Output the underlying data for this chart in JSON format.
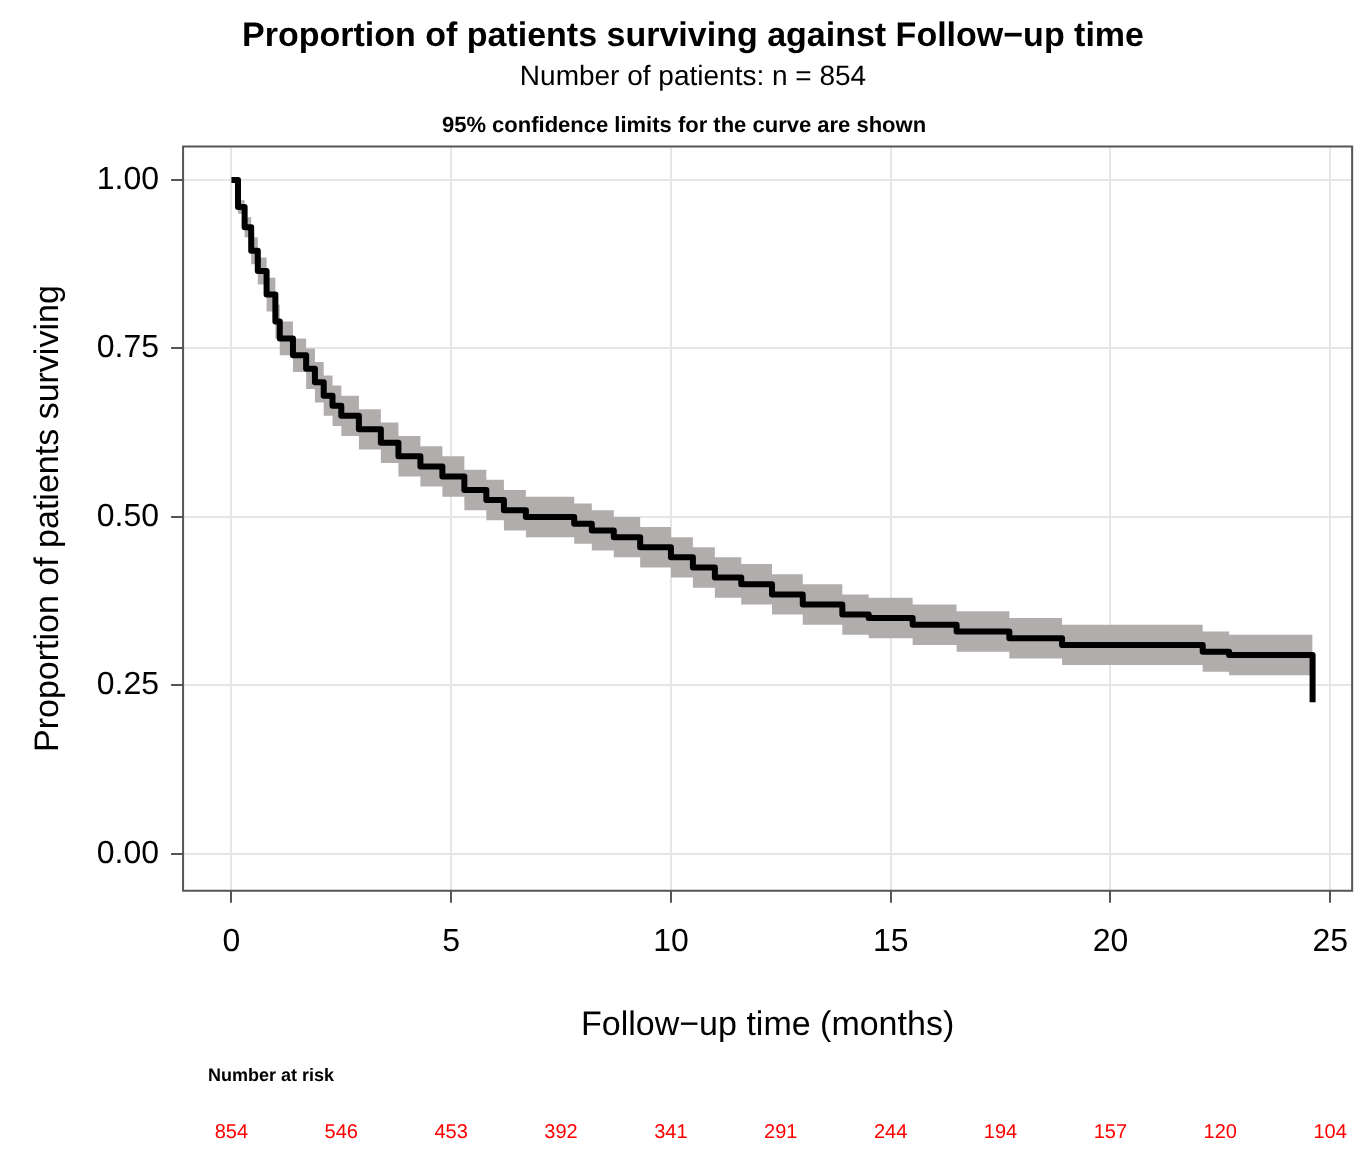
{
  "chart_data": {
    "type": "step",
    "title": "Proportion of patients surviving against Follow−up time",
    "subtitle": "Number of patients: n = 854",
    "xlabel": "Follow−up time (months)",
    "ylabel": "Proportion of patients surviving",
    "x": [
      0,
      0.15,
      0.3,
      0.45,
      0.6,
      0.8,
      1,
      1.1,
      1.4,
      1.7,
      1.9,
      2.1,
      2.3,
      2.5,
      2.9,
      3.4,
      3.8,
      4.3,
      4.8,
      5.3,
      5.8,
      6.2,
      6.7,
      7.8,
      8.2,
      8.7,
      9.3,
      10,
      10.5,
      11,
      11.6,
      12.3,
      13,
      13.9,
      14.5,
      15.5,
      16.5,
      17.7,
      18.9,
      21,
      22.1,
      22.7,
      24.6,
      24.6
    ],
    "series": [
      {
        "color": "#000000",
        "values": [
          1,
          0.96,
          0.93,
          0.895,
          0.865,
          0.83,
          0.79,
          0.765,
          0.74,
          0.72,
          0.7,
          0.68,
          0.665,
          0.65,
          0.63,
          0.61,
          0.59,
          0.575,
          0.56,
          0.54,
          0.525,
          0.51,
          0.5,
          0.49,
          0.48,
          0.47,
          0.455,
          0.44,
          0.425,
          0.41,
          0.4,
          0.385,
          0.37,
          0.355,
          0.35,
          0.34,
          0.33,
          0.32,
          0.31,
          0.31,
          0.3,
          0.295,
          0.295,
          0.225
        ],
        "lower": [
          1,
          0.95,
          0.915,
          0.875,
          0.845,
          0.805,
          0.765,
          0.74,
          0.715,
          0.69,
          0.67,
          0.65,
          0.635,
          0.62,
          0.6,
          0.58,
          0.56,
          0.545,
          0.53,
          0.51,
          0.495,
          0.48,
          0.47,
          0.46,
          0.45,
          0.44,
          0.425,
          0.41,
          0.395,
          0.38,
          0.37,
          0.355,
          0.34,
          0.325,
          0.32,
          0.31,
          0.3,
          0.29,
          0.28,
          0.28,
          0.27,
          0.265,
          0.265,
          null
        ],
        "upper": [
          1,
          0.97,
          0.945,
          0.915,
          0.885,
          0.855,
          0.815,
          0.79,
          0.765,
          0.75,
          0.73,
          0.71,
          0.695,
          0.68,
          0.66,
          0.64,
          0.62,
          0.605,
          0.59,
          0.57,
          0.555,
          0.54,
          0.53,
          0.52,
          0.51,
          0.5,
          0.485,
          0.47,
          0.455,
          0.44,
          0.43,
          0.415,
          0.4,
          0.385,
          0.38,
          0.37,
          0.36,
          0.35,
          0.34,
          0.34,
          0.33,
          0.325,
          0.325,
          null
        ]
      }
    ],
    "xlim": [
      -1.1,
      25.5
    ],
    "xticks": [
      0,
      5,
      10,
      15,
      20,
      25
    ],
    "ylim": [
      -0.055,
      1.05
    ],
    "yticks": [
      {
        "value": 0,
        "label": "0.00"
      },
      {
        "value": 0.25,
        "label": "0.25"
      },
      {
        "value": 0.5,
        "label": "0.50"
      },
      {
        "value": 0.75,
        "label": "0.75"
      },
      {
        "value": 1,
        "label": "1.00"
      }
    ],
    "grid": true,
    "legend": false,
    "marker": "none",
    "line_style": "solid",
    "annotations": [
      "95% confidence limits for the curve are shown",
      "Number at risk",
      "854",
      "546",
      "453",
      "392",
      "341",
      "291",
      "244",
      "194",
      "157",
      "120",
      "104"
    ]
  }
}
